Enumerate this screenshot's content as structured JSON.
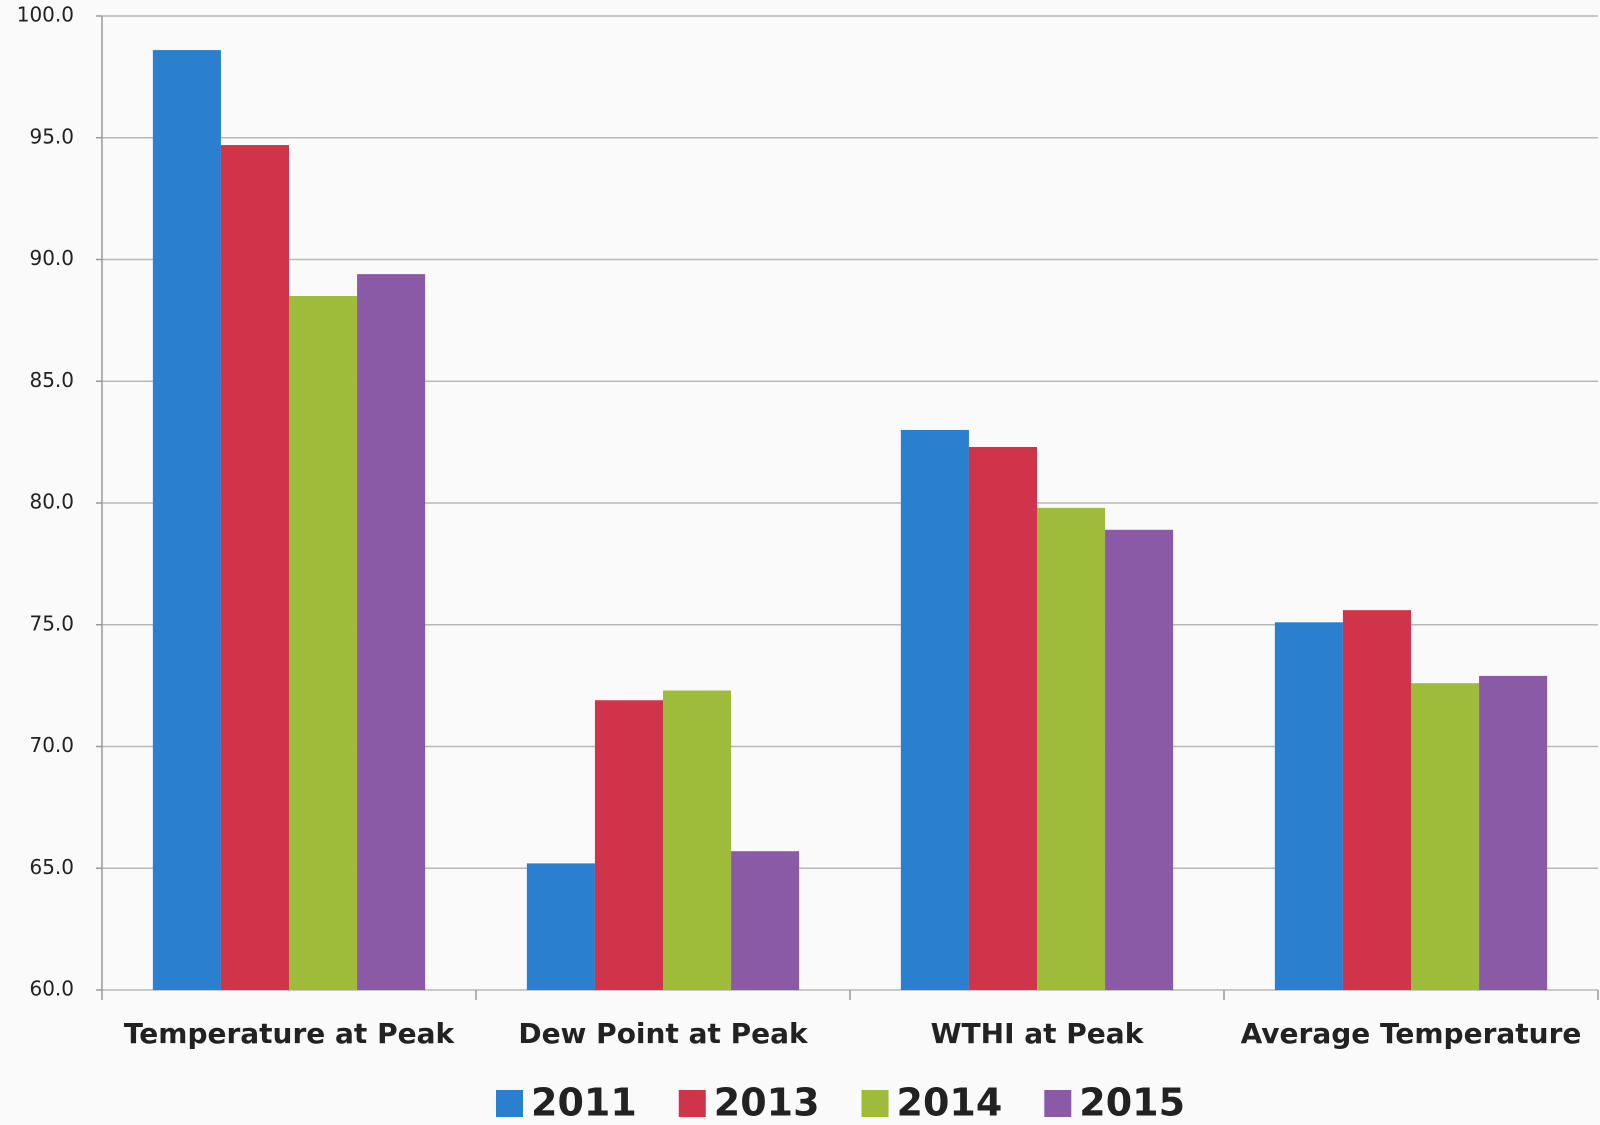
{
  "chart_data": {
    "type": "bar",
    "categories": [
      "Temperature at Peak",
      "Dew Point at Peak",
      "WTHI at Peak",
      "Average Temperature"
    ],
    "series": [
      {
        "name": "2011",
        "color": "#2a7fcf",
        "values": [
          98.6,
          65.2,
          83.0,
          75.1
        ]
      },
      {
        "name": "2013",
        "color": "#d0344a",
        "values": [
          94.7,
          71.9,
          82.3,
          75.6
        ]
      },
      {
        "name": "2014",
        "color": "#9fbb3a",
        "values": [
          88.5,
          72.3,
          79.8,
          72.6
        ]
      },
      {
        "name": "2015",
        "color": "#8a5aa6",
        "values": [
          89.4,
          65.7,
          78.9,
          72.9
        ]
      }
    ],
    "ylim": [
      60,
      100
    ],
    "yticks": [
      {
        "value": 60,
        "label": "60.0"
      },
      {
        "value": 65,
        "label": "65.0"
      },
      {
        "value": 70,
        "label": "70.0"
      },
      {
        "value": 75,
        "label": "75.0"
      },
      {
        "value": 80,
        "label": "80.0"
      },
      {
        "value": 85,
        "label": "85.0"
      },
      {
        "value": 90,
        "label": "90.0"
      },
      {
        "value": 95,
        "label": "95.0"
      },
      {
        "value": 100,
        "label": "100.0"
      }
    ],
    "grid": true
  }
}
